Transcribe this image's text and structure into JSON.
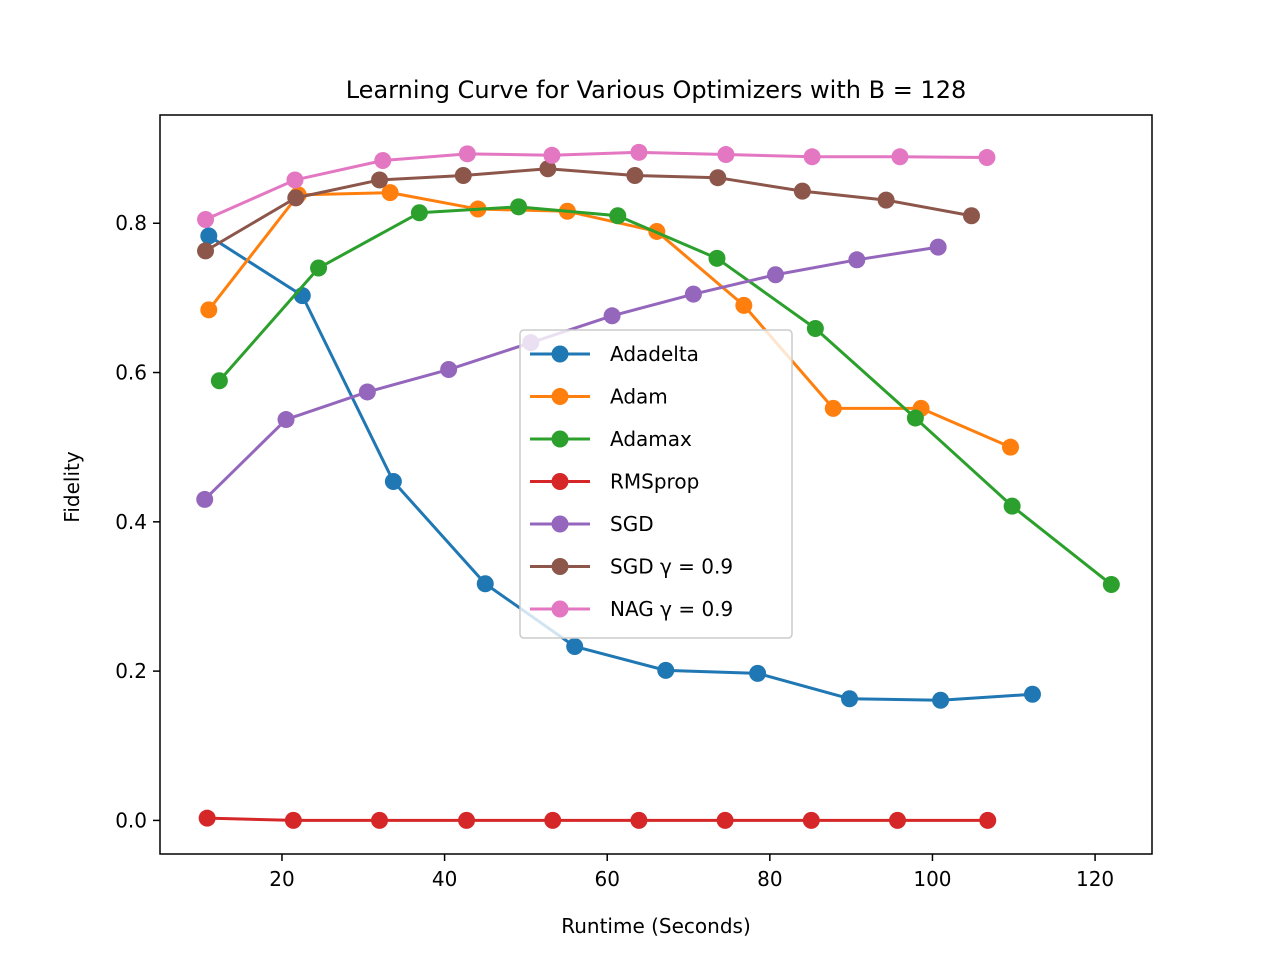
{
  "chart_data": {
    "type": "line",
    "title": "Learning Curve for Various Optimizers with B = 128",
    "xlabel": "Runtime (Seconds)",
    "ylabel": "Fidelity",
    "xlim": [
      5,
      127
    ],
    "ylim": [
      -0.045,
      0.945
    ],
    "xticks": [
      20,
      40,
      60,
      80,
      100,
      120
    ],
    "xtick_labels": [
      "20",
      "40",
      "60",
      "80",
      "100",
      "120"
    ],
    "yticks": [
      0.0,
      0.2,
      0.4,
      0.6,
      0.8
    ],
    "ytick_labels": [
      "0.0",
      "0.2",
      "0.4",
      "0.6",
      "0.8"
    ],
    "grid": false,
    "legend_position": "center",
    "series": [
      {
        "name": "Adadelta",
        "color": "#1f77b4",
        "x": [
          11.0,
          22.5,
          33.7,
          45.0,
          56.0,
          67.2,
          78.5,
          89.8,
          101.0,
          112.3
        ],
        "y": [
          0.783,
          0.703,
          0.454,
          0.317,
          0.233,
          0.201,
          0.197,
          0.163,
          0.161,
          0.169
        ]
      },
      {
        "name": "Adam",
        "color": "#ff7f0e",
        "x": [
          11.0,
          22.0,
          33.3,
          44.1,
          55.1,
          66.1,
          76.8,
          87.8,
          98.6,
          109.6
        ],
        "y": [
          0.684,
          0.838,
          0.841,
          0.819,
          0.816,
          0.789,
          0.69,
          0.552,
          0.552,
          0.5
        ]
      },
      {
        "name": "Adamax",
        "color": "#2ca02c",
        "x": [
          12.3,
          24.5,
          36.9,
          49.1,
          61.3,
          73.5,
          85.6,
          97.9,
          109.8,
          122.0
        ],
        "y": [
          0.589,
          0.74,
          0.814,
          0.822,
          0.81,
          0.753,
          0.659,
          0.539,
          0.421,
          0.316
        ]
      },
      {
        "name": "RMSprop",
        "color": "#d62728",
        "x": [
          10.8,
          21.4,
          32.0,
          42.7,
          53.3,
          63.9,
          74.5,
          85.1,
          95.7,
          106.8
        ],
        "y": [
          0.003,
          0.0,
          0.0,
          0.0,
          0.0,
          0.0,
          0.0,
          0.0,
          0.0,
          0.0
        ]
      },
      {
        "name": "SGD",
        "color": "#9467bd",
        "x": [
          10.5,
          20.5,
          30.5,
          40.5,
          50.6,
          60.6,
          70.6,
          80.7,
          90.7,
          100.7
        ],
        "y": [
          0.43,
          0.537,
          0.574,
          0.604,
          0.64,
          0.676,
          0.705,
          0.731,
          0.751,
          0.768
        ]
      },
      {
        "name": "SGD γ = 0.9",
        "color": "#8c564b",
        "x": [
          10.6,
          21.7,
          32.0,
          42.3,
          52.7,
          63.4,
          73.6,
          84.0,
          94.3,
          104.8
        ],
        "y": [
          0.763,
          0.834,
          0.858,
          0.864,
          0.873,
          0.864,
          0.861,
          0.843,
          0.831,
          0.81
        ]
      },
      {
        "name": "NAG γ = 0.9",
        "color": "#e377c2",
        "x": [
          10.6,
          21.6,
          32.4,
          42.8,
          53.2,
          63.9,
          74.6,
          85.2,
          96.0,
          106.7
        ],
        "y": [
          0.805,
          0.858,
          0.884,
          0.893,
          0.891,
          0.895,
          0.892,
          0.889,
          0.889,
          0.888
        ]
      }
    ]
  }
}
